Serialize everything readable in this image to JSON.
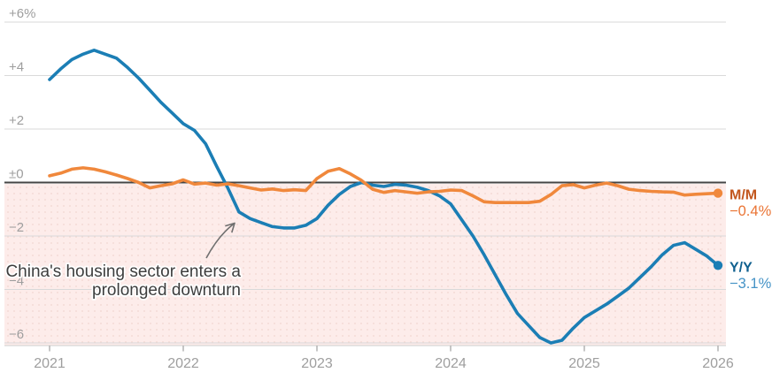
{
  "chart_data": {
    "type": "line",
    "x_ticks": [
      "2021",
      "2022",
      "2023",
      "2024",
      "2025",
      "2026"
    ],
    "y_tick_labels": [
      "+6%",
      "+4",
      "+2",
      "±0",
      "−2",
      "−4",
      "−6"
    ],
    "y_tick_values": [
      6,
      4,
      2,
      0,
      -2,
      -4,
      -6
    ],
    "ylim": [
      -6.2,
      6.8
    ],
    "grid": true,
    "legend_position": "right-end",
    "x_start": "2021-01",
    "x_end": "2026-01",
    "points_per_year": 12,
    "negative_region_fill": "#fdecea",
    "annotation": {
      "line1": "China's housing sector enters a",
      "line2": "prolonged downturn"
    },
    "series": [
      {
        "name": "M/M",
        "end_label": "−0.4%",
        "color": "#f0883c",
        "label_color": "#c2561d",
        "value_color": "#ea7434",
        "values": [
          0.25,
          0.35,
          0.5,
          0.55,
          0.5,
          0.4,
          0.28,
          0.15,
          0.0,
          -0.2,
          -0.12,
          -0.05,
          0.1,
          -0.06,
          -0.02,
          -0.1,
          -0.05,
          -0.12,
          -0.2,
          -0.28,
          -0.24,
          -0.3,
          -0.27,
          -0.3,
          0.15,
          0.42,
          0.52,
          0.32,
          0.08,
          -0.25,
          -0.37,
          -0.3,
          -0.35,
          -0.4,
          -0.35,
          -0.33,
          -0.28,
          -0.3,
          -0.5,
          -0.72,
          -0.75,
          -0.75,
          -0.75,
          -0.75,
          -0.7,
          -0.45,
          -0.12,
          -0.08,
          -0.2,
          -0.1,
          -0.02,
          -0.12,
          -0.25,
          -0.3,
          -0.33,
          -0.35,
          -0.36,
          -0.47,
          -0.44,
          -0.42,
          -0.4
        ]
      },
      {
        "name": "Y/Y",
        "end_label": "−3.1%",
        "color": "#1b7eb5",
        "label_color": "#11618f",
        "value_color": "#4593c6",
        "values": [
          3.85,
          4.25,
          4.6,
          4.8,
          4.95,
          4.8,
          4.65,
          4.3,
          3.9,
          3.45,
          3.0,
          2.6,
          2.2,
          1.95,
          1.45,
          0.6,
          -0.2,
          -1.1,
          -1.35,
          -1.5,
          -1.65,
          -1.7,
          -1.7,
          -1.6,
          -1.35,
          -0.85,
          -0.45,
          -0.15,
          0.0,
          -0.1,
          -0.15,
          -0.07,
          -0.1,
          -0.18,
          -0.3,
          -0.5,
          -0.8,
          -1.4,
          -2.0,
          -2.7,
          -3.45,
          -4.2,
          -4.9,
          -5.35,
          -5.8,
          -6.0,
          -5.9,
          -5.45,
          -5.05,
          -4.8,
          -4.55,
          -4.25,
          -3.95,
          -3.55,
          -3.15,
          -2.7,
          -2.35,
          -2.25,
          -2.5,
          -2.75,
          -3.1
        ]
      }
    ]
  }
}
